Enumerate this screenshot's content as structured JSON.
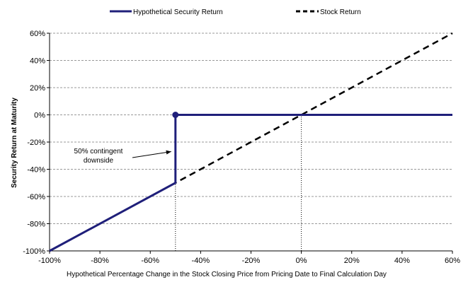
{
  "chart_data": {
    "type": "line",
    "title": "",
    "xlabel": "Hypothetical Percentage Change in the Stock Closing Price from Pricing Date to Final Calculation Day",
    "ylabel": "Security Return at Maturity",
    "xlim": [
      -100,
      60
    ],
    "ylim": [
      -100,
      60
    ],
    "x_ticks": [
      "-100%",
      "-80%",
      "-60%",
      "-40%",
      "-20%",
      "0%",
      "20%",
      "40%",
      "60%"
    ],
    "y_ticks": [
      "-100%",
      "-80%",
      "-60%",
      "-40%",
      "-20%",
      "0%",
      "20%",
      "40%",
      "60%"
    ],
    "x_tick_values": [
      -100,
      -80,
      -60,
      -40,
      -20,
      0,
      20,
      40,
      60
    ],
    "y_tick_values": [
      -100,
      -80,
      -60,
      -40,
      -20,
      0,
      20,
      40,
      60
    ],
    "grid": "horizontal dashed",
    "legend_position": "top",
    "series": [
      {
        "name": "Hypothetical Security Return",
        "color": "#1f1f7a",
        "style": "solid",
        "points": [
          [
            -100,
            -100
          ],
          [
            -50,
            -50
          ],
          [
            -50,
            0
          ],
          [
            60,
            0
          ]
        ]
      },
      {
        "name": "Stock Return",
        "color": "#000000",
        "style": "dashed",
        "points": [
          [
            -100,
            -100
          ],
          [
            60,
            60
          ]
        ]
      }
    ],
    "marker_point": [
      -50,
      0
    ],
    "reference_lines": [
      {
        "x": -50,
        "y_from": -100,
        "y_to": -50
      },
      {
        "x": 0,
        "y_from": -100,
        "y_to": 0
      }
    ],
    "annotation": {
      "lines": [
        "50% contingent",
        "downside"
      ],
      "target": [
        -50,
        -27
      ]
    }
  }
}
